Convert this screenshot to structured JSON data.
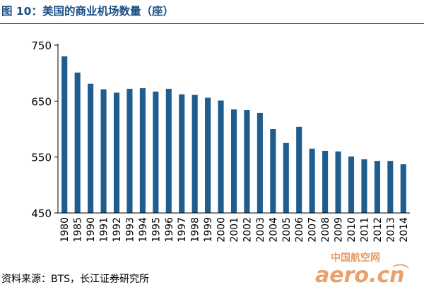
{
  "title": "图 10：美国的商业机场数量（座）",
  "source": "资料来源：BTS，长江证券研究所",
  "watermark": {
    "text_cn": "中国航空网",
    "text_en": "aero.cn"
  },
  "colors": {
    "bar": "#1f5d8e",
    "title": "#1a4f86",
    "axis": "#000000",
    "watermark": "#e07a2e"
  },
  "chart_data": {
    "type": "bar",
    "title": "",
    "xlabel": "",
    "ylabel": "",
    "ylim": [
      450,
      750
    ],
    "yticks": [
      450,
      550,
      650,
      750
    ],
    "grid": false,
    "categories": [
      "1980",
      "1985",
      "1990",
      "1991",
      "1992",
      "1993",
      "1994",
      "1995",
      "1996",
      "1997",
      "1998",
      "1999",
      "2000",
      "2001",
      "2002",
      "2003",
      "2004",
      "2005",
      "2006",
      "2007",
      "2008",
      "2009",
      "2010",
      "2011",
      "2012",
      "2013",
      "2014"
    ],
    "values": [
      730,
      701,
      681,
      671,
      665,
      672,
      673,
      667,
      672,
      662,
      661,
      656,
      651,
      635,
      634,
      629,
      600,
      575,
      604,
      565,
      561,
      560,
      551,
      546,
      543,
      543,
      537
    ]
  }
}
